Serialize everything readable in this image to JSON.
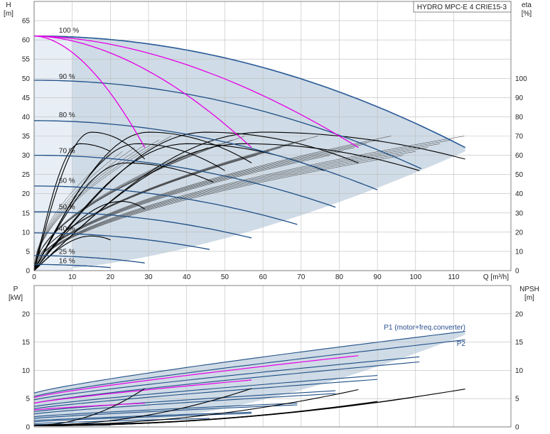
{
  "colors": {
    "curve_blue": "#1f4f86",
    "envelope_blue": "#2d5d99",
    "shade": "#cfdbe6",
    "shade_light": "#e7eef5",
    "magenta": "#e600e6",
    "black": "#000000",
    "grid": "#bdbdbd"
  },
  "chart_data": [
    {
      "type": "line",
      "title": "HYDRO MPC-E 4 CRIE15-3",
      "xlabel": "Q [m³/h]",
      "ylabel_left": [
        "H",
        "[m]"
      ],
      "ylabel_right": [
        "eta",
        "[%]"
      ],
      "xlim": [
        0,
        125
      ],
      "ylim": [
        0,
        70
      ],
      "eta_lim": [
        0,
        140
      ],
      "x_ticks": [
        0,
        10,
        20,
        30,
        40,
        50,
        60,
        70,
        80,
        90,
        100,
        110
      ],
      "y_ticks": [
        0,
        5,
        10,
        15,
        20,
        25,
        30,
        35,
        40,
        45,
        50,
        55,
        60,
        65
      ],
      "eta_ticks": [
        0,
        10,
        20,
        30,
        40,
        50,
        60,
        70,
        80,
        90,
        100
      ],
      "grid": true,
      "speed_labels": [
        {
          "text": "100 %",
          "x": 6.5,
          "h": 61.5
        },
        {
          "text": "90 %",
          "x": 6.5,
          "h": 49.5
        },
        {
          "text": "80 %",
          "x": 6.5,
          "h": 39.5
        },
        {
          "text": "70 %",
          "x": 6.5,
          "h": 30.2
        },
        {
          "text": "60 %",
          "x": 6.5,
          "h": 22.4
        },
        {
          "text": "50 %",
          "x": 6.5,
          "h": 15.6
        },
        {
          "text": "40 %",
          "x": 6.5,
          "h": 10.0
        },
        {
          "text": "25 %",
          "x": 6.5,
          "h": 4.0
        },
        {
          "text": "16 %",
          "x": 6.5,
          "h": 1.6
        }
      ],
      "head_curves": [
        {
          "pct": 100,
          "h0": 61,
          "qmax": 113,
          "hend": 32
        },
        {
          "pct": 90,
          "h0": 49.5,
          "qmax": 101.5,
          "hend": 26.5
        },
        {
          "pct": 80,
          "h0": 39,
          "qmax": 90,
          "hend": 21
        },
        {
          "pct": 70,
          "h0": 30,
          "qmax": 79,
          "hend": 16.5
        },
        {
          "pct": 60,
          "h0": 22,
          "qmax": 69,
          "hend": 12
        },
        {
          "pct": 50,
          "h0": 15.3,
          "qmax": 57,
          "hend": 8.5
        },
        {
          "pct": 40,
          "h0": 9.8,
          "qmax": 46,
          "hend": 5.5
        },
        {
          "pct": 25,
          "h0": 3.9,
          "qmax": 29,
          "hend": 2.0
        },
        {
          "pct": 16,
          "h0": 1.6,
          "qmax": 20,
          "hend": 0.8
        }
      ],
      "envelope": {
        "h0": 61,
        "qmax": 113,
        "hend": 32
      },
      "magenta_curves": [
        {
          "x0": 0,
          "h0": 61,
          "x1": 29,
          "h1": 32,
          "bend": 12
        },
        {
          "x0": 0,
          "h0": 61,
          "x1": 57,
          "h1": 32,
          "bend": 22
        },
        {
          "x0": 0,
          "h0": 61,
          "x1": 85,
          "h1": 32,
          "bend": 32
        }
      ],
      "eff_curves": [
        {
          "peak": 36,
          "qpeak": 15,
          "qend": 29,
          "hend": 29
        },
        {
          "peak": 36,
          "qpeak": 30,
          "qend": 57,
          "hend": 28
        },
        {
          "peak": 36,
          "qpeak": 45,
          "qend": 85,
          "hend": 28
        },
        {
          "peak": 36,
          "qpeak": 60,
          "qend": 113,
          "hend": 29
        },
        {
          "peak": 33,
          "qpeak": 12,
          "qend": 20,
          "hend": 31
        },
        {
          "peak": 33,
          "qpeak": 27,
          "qend": 50,
          "hend": 26
        },
        {
          "peak": 33,
          "qpeak": 40,
          "qend": 76,
          "hend": 26
        },
        {
          "peak": 33,
          "qpeak": 55,
          "qend": 101,
          "hend": 26
        },
        {
          "peak": 28,
          "qpeak": 24,
          "qend": 47,
          "hend": 23
        },
        {
          "peak": 18,
          "qpeak": 23,
          "qend": 29,
          "hend": 16
        },
        {
          "peak": 9,
          "qpeak": 15,
          "qend": 20,
          "hend": 8
        }
      ],
      "fan_count": 30
    },
    {
      "type": "line",
      "xlabel": "",
      "ylabel_left": [
        "P",
        "[kW]"
      ],
      "ylabel_right": [
        "NPSH",
        "[m]"
      ],
      "xlim": [
        0,
        125
      ],
      "ylim": [
        0,
        25
      ],
      "y_ticks": [
        0,
        5,
        10,
        15,
        20
      ],
      "grid": true,
      "series_labels": [
        "P1 (motor+freq.converter)",
        "P2"
      ],
      "envelope_top": {
        "p0": 6,
        "qmax": 113,
        "pend": 16.9
      },
      "envelope_bottom": {
        "p0": 1.2,
        "qmax": 113,
        "pend": 16.3,
        "q_start": 27
      },
      "power_curves": [
        {
          "p0": 6.0,
          "qmax": 113,
          "pend": 16.9
        },
        {
          "p0": 5.4,
          "qmax": 113,
          "pend": 15.4
        },
        {
          "p0": 4.8,
          "qmax": 101,
          "pend": 12.4
        },
        {
          "p0": 4.2,
          "qmax": 101,
          "pend": 11.5
        },
        {
          "p0": 3.6,
          "qmax": 90,
          "pend": 9.1
        },
        {
          "p0": 3.2,
          "qmax": 90,
          "pend": 8.4
        },
        {
          "p0": 2.7,
          "qmax": 79,
          "pend": 6.4
        },
        {
          "p0": 2.3,
          "qmax": 79,
          "pend": 5.9
        },
        {
          "p0": 1.8,
          "qmax": 69,
          "pend": 4.2
        },
        {
          "p0": 1.5,
          "qmax": 69,
          "pend": 3.9
        },
        {
          "p0": 1.1,
          "qmax": 57,
          "pend": 2.6
        },
        {
          "p0": 0.9,
          "qmax": 57,
          "pend": 2.4
        },
        {
          "p0": 0.6,
          "qmax": 46,
          "pend": 1.5
        },
        {
          "p0": 0.4,
          "qmax": 29,
          "pend": 0.7
        },
        {
          "p0": 0.2,
          "qmax": 20,
          "pend": 0.3
        }
      ],
      "magenta_power": [
        {
          "p0": 3.0,
          "qmax": 29,
          "pend": 4.2
        },
        {
          "p0": 4.2,
          "qmax": 57,
          "pend": 8.3
        },
        {
          "p0": 5.2,
          "qmax": 85,
          "pend": 12.6
        }
      ],
      "npsh_curves": [
        {
          "n0": 0.3,
          "qmax": 29,
          "nend": 6.8
        },
        {
          "n0": 0.3,
          "qmax": 57,
          "nend": 6.8
        },
        {
          "n0": 0.3,
          "qmax": 85,
          "nend": 6.6
        },
        {
          "n0": 0.3,
          "qmax": 113,
          "nend": 6.7
        },
        {
          "n0": 0.2,
          "qmax": 90,
          "nend": 4.5
        },
        {
          "n0": 0.2,
          "qmax": 101,
          "nend": 5.4
        },
        {
          "n0": 0.2,
          "qmax": 79,
          "nend": 3.4
        }
      ]
    }
  ]
}
